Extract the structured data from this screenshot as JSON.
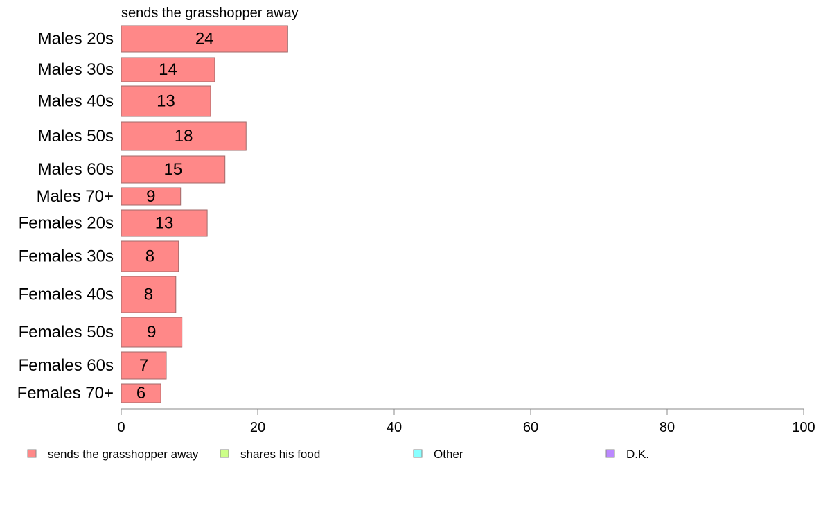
{
  "chart_data": {
    "type": "bar",
    "orientation": "horizontal",
    "title": "sends the grasshopper away",
    "categories": [
      "Males 20s",
      "Males 30s",
      "Males 40s",
      "Males 50s",
      "Males 60s",
      "Males 70+",
      "Females 20s",
      "Females 30s",
      "Females 40s",
      "Females 50s",
      "Females 60s",
      "Females 70+"
    ],
    "series": [
      {
        "name": "sends the grasshopper away",
        "color": "#ff8888",
        "values": [
          24.4,
          13.7,
          13.1,
          18.3,
          15.2,
          8.7,
          12.6,
          8.4,
          8.0,
          8.9,
          6.6,
          5.8
        ],
        "labels": [
          "24",
          "14",
          "13",
          "18",
          "15",
          "9",
          "13",
          "8",
          "8",
          "9",
          "7",
          "6"
        ]
      }
    ],
    "xlim": [
      0,
      100
    ],
    "xticks": [
      "0",
      "20",
      "40",
      "60",
      "80",
      "100"
    ],
    "xlabel": "",
    "ylabel": "",
    "grid": false,
    "legend_position": "bottom",
    "legend": [
      {
        "label": "sends the grasshopper away",
        "color": "#ff8888"
      },
      {
        "label": "shares his food",
        "color": "#ccff88"
      },
      {
        "label": "Other",
        "color": "#88ffff"
      },
      {
        "label": "D.K.",
        "color": "#bb88ff"
      }
    ]
  }
}
